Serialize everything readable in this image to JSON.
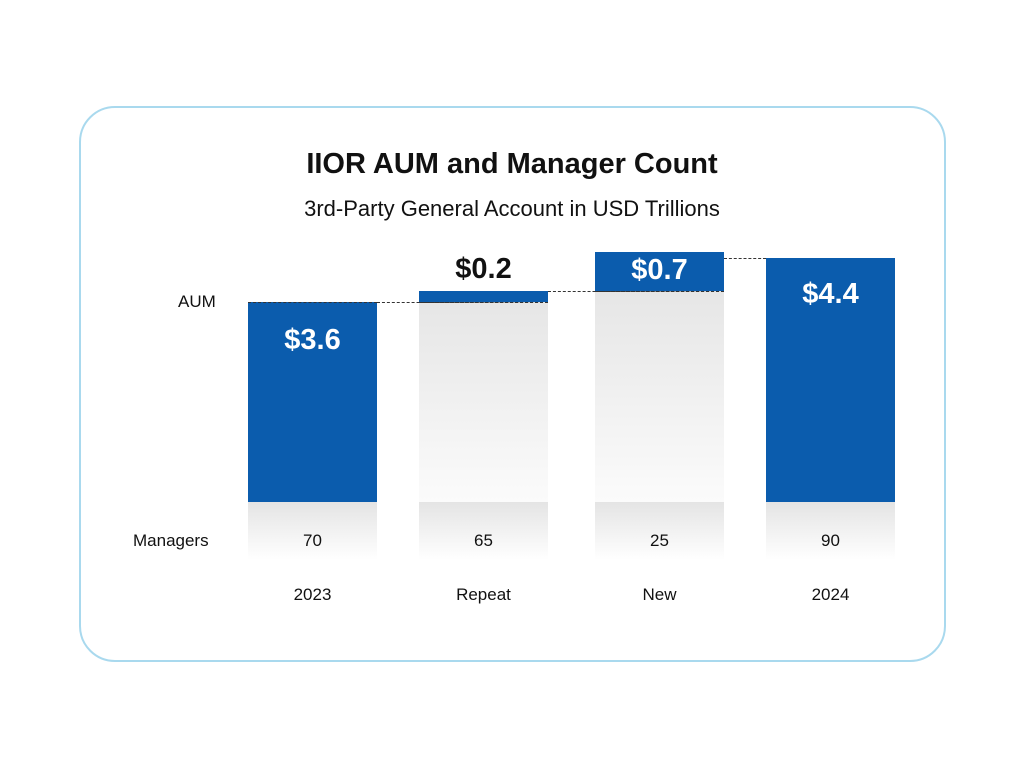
{
  "chart_data": {
    "type": "bar",
    "subtype": "waterfall",
    "title": "IIOR AUM and Manager Count",
    "subtitle": "3rd-Party General Account in USD Trillions",
    "ylabel": "AUM",
    "row_label": "Managers",
    "categories": [
      "2023",
      "Repeat",
      "New",
      "2024"
    ],
    "values": [
      3.6,
      0.2,
      0.7,
      4.4
    ],
    "value_labels": [
      "$3.6",
      "$0.2",
      "$0.7",
      "$4.4"
    ],
    "bar_kind": [
      "total",
      "increment",
      "increment",
      "total"
    ],
    "managers": [
      "70",
      "65",
      "25",
      "90"
    ],
    "ylim": [
      0,
      4.4
    ],
    "color": "#0b5cad"
  }
}
